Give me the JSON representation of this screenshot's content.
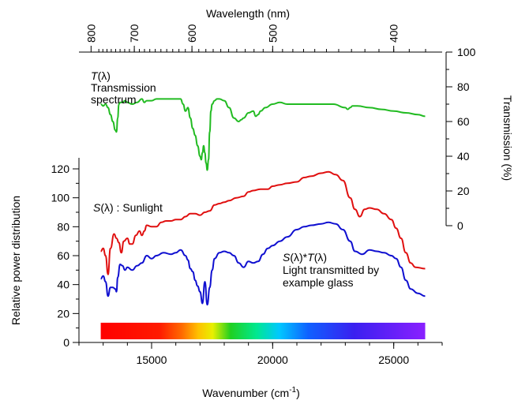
{
  "chart_data": {
    "type": "line",
    "title": "",
    "colors": {
      "transmission": "#22bb22",
      "sunlight": "#e01010",
      "transmitted": "#1010d0",
      "axis": "#000000"
    },
    "axes": {
      "bottom": {
        "label_text": "Wavenumber (cm",
        "label_sup": "-1",
        "label_close": ")",
        "range": [
          12000,
          27000
        ],
        "ticks": [
          {
            "value": 15000,
            "label": "15000"
          },
          {
            "value": 20000,
            "label": "20000"
          },
          {
            "value": 25000,
            "label": "25000"
          }
        ],
        "minor_step": 1000
      },
      "top": {
        "label": "Wavelength (nm)",
        "ticks": [
          {
            "value": 800,
            "label": "800"
          },
          {
            "value": 700,
            "label": "700"
          },
          {
            "value": 600,
            "label": "600"
          },
          {
            "value": 500,
            "label": "500"
          },
          {
            "value": 400,
            "label": "400"
          }
        ],
        "minor_step": 10
      },
      "left": {
        "label": "Relative power distribution",
        "range": [
          0,
          130
        ],
        "ticks": [
          0,
          20,
          40,
          60,
          80,
          100,
          120
        ]
      },
      "right": {
        "label": "Transmission (%)",
        "range": [
          0,
          100
        ],
        "ticks": [
          0,
          20,
          40,
          60,
          80,
          100
        ]
      }
    },
    "annotations": {
      "transmission": {
        "symbol": "T",
        "arg": "(λ)",
        "line2": "Transmission",
        "line3": "spectrum"
      },
      "sunlight": {
        "symbol": "S",
        "arg": "(λ) : Sunlight"
      },
      "transmitted": {
        "symbol1": "S",
        "mid": "(λ)*",
        "symbol2": "T",
        "arg": "(λ)",
        "line2": "Light transmitted by",
        "line3": "example glass"
      }
    },
    "series": [
      {
        "key": "transmission",
        "axis": "right",
        "x": [
          12900,
          13000,
          13100,
          13200,
          13300,
          13400,
          13500,
          13550,
          13600,
          13650,
          13700,
          13800,
          13900,
          14000,
          14200,
          14400,
          14600,
          14700,
          14800,
          15000,
          15200,
          15500,
          15800,
          16000,
          16200,
          16300,
          16400,
          16500,
          16600,
          16700,
          16800,
          16900,
          17000,
          17050,
          17100,
          17150,
          17200,
          17250,
          17300,
          17350,
          17400,
          17450,
          17500,
          17600,
          17700,
          17800,
          18000,
          18200,
          18400,
          18600,
          18700,
          18800,
          19000,
          19200,
          19300,
          19400,
          19500,
          19700,
          20000,
          20300,
          20600,
          21000,
          21500,
          22000,
          22500,
          23000,
          23100,
          23200,
          23300,
          23500,
          24000,
          24500,
          25000,
          25500,
          26000,
          26300
        ],
        "y": [
          70,
          69,
          70,
          68,
          64,
          60,
          55,
          54,
          62,
          70,
          71,
          71,
          72,
          71,
          70,
          71,
          73,
          71,
          72,
          72,
          73,
          73,
          73,
          73,
          73,
          70,
          66,
          68,
          62,
          56,
          52,
          46,
          40,
          38,
          42,
          46,
          42,
          36,
          32,
          38,
          54,
          66,
          70,
          72,
          73,
          73,
          72,
          68,
          62,
          60,
          61,
          62,
          65,
          66,
          63,
          64,
          66,
          68,
          70,
          71,
          70,
          70,
          70,
          70,
          70,
          68,
          67,
          68,
          69,
          69,
          68,
          67,
          66,
          65,
          64,
          63
        ]
      },
      {
        "key": "sunlight",
        "axis": "left",
        "x": [
          12900,
          13000,
          13100,
          13200,
          13300,
          13450,
          13550,
          13650,
          13750,
          13850,
          14000,
          14100,
          14200,
          14350,
          14500,
          14600,
          14700,
          14800,
          15000,
          15200,
          15400,
          15600,
          15800,
          16000,
          16200,
          16400,
          16600,
          16800,
          17000,
          17200,
          17400,
          17600,
          17800,
          18000,
          18200,
          18500,
          18800,
          19000,
          19200,
          19500,
          19800,
          20000,
          20300,
          20600,
          21000,
          21300,
          21600,
          22000,
          22300,
          22600,
          22900,
          23200,
          23400,
          23600,
          23800,
          24000,
          24300,
          24600,
          24900,
          25100,
          25300,
          25500,
          25700,
          25900,
          26300
        ],
        "y": [
          63,
          65,
          60,
          47,
          65,
          75,
          72,
          69,
          62,
          70,
          72,
          68,
          68,
          74,
          77,
          74,
          77,
          81,
          80,
          80,
          83,
          84,
          84,
          85,
          85,
          87,
          89,
          89,
          88,
          90,
          91,
          95,
          96,
          97,
          98,
          100,
          101,
          104,
          105,
          106,
          106,
          108,
          109,
          110,
          111,
          114,
          115,
          117,
          118,
          116,
          112,
          100,
          92,
          87,
          92,
          93,
          92,
          89,
          85,
          79,
          72,
          62,
          55,
          52,
          51
        ]
      },
      {
        "key": "transmitted",
        "axis": "left",
        "x": [
          12900,
          13000,
          13100,
          13200,
          13300,
          13400,
          13500,
          13550,
          13600,
          13700,
          13800,
          13900,
          14000,
          14200,
          14400,
          14600,
          14800,
          15000,
          15200,
          15500,
          15800,
          16000,
          16200,
          16400,
          16500,
          16600,
          16700,
          16800,
          16900,
          17000,
          17100,
          17200,
          17300,
          17400,
          17500,
          17600,
          17800,
          18000,
          18200,
          18400,
          18600,
          18800,
          19000,
          19200,
          19400,
          19600,
          19800,
          20000,
          20300,
          20600,
          21000,
          21300,
          21600,
          22000,
          22300,
          22600,
          22900,
          23200,
          23400,
          23700,
          24000,
          24300,
          24600,
          24900,
          25100,
          25300,
          25500,
          25700,
          26000,
          26300
        ],
        "y": [
          44,
          46,
          42,
          32,
          38,
          38,
          37,
          35,
          45,
          54,
          53,
          50,
          52,
          50,
          53,
          55,
          60,
          58,
          60,
          62,
          61,
          62,
          64,
          60,
          57,
          51,
          49,
          43,
          39,
          35,
          27,
          42,
          26,
          38,
          50,
          58,
          62,
          63,
          62,
          60,
          55,
          52,
          56,
          55,
          56,
          61,
          65,
          67,
          70,
          73,
          78,
          80,
          81,
          82,
          83,
          82,
          78,
          70,
          63,
          61,
          64,
          63,
          62,
          60,
          58,
          52,
          43,
          37,
          34,
          32
        ]
      }
    ],
    "spectrum_bar": {
      "x_start": 12900,
      "x_end": 26300
    }
  }
}
